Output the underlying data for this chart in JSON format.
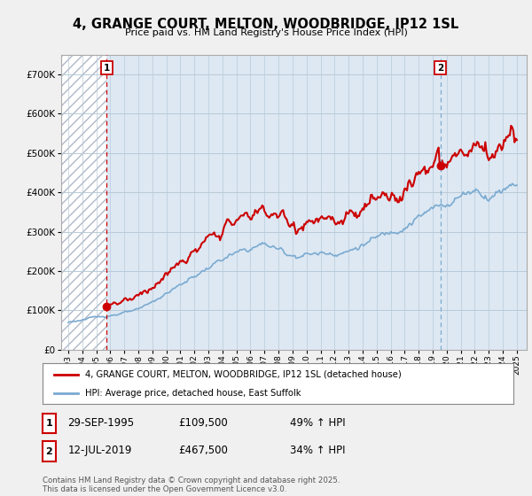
{
  "title": "4, GRANGE COURT, MELTON, WOODBRIDGE, IP12 1SL",
  "subtitle": "Price paid vs. HM Land Registry's House Price Index (HPI)",
  "ytick_values": [
    0,
    100000,
    200000,
    300000,
    400000,
    500000,
    600000,
    700000
  ],
  "ylim": [
    0,
    750000
  ],
  "xlim_start": 1992.5,
  "xlim_end": 2025.7,
  "sale1_year": 1995.75,
  "sale1_price": 109500,
  "sale1_label": "1",
  "sale1_date": "29-SEP-1995",
  "sale1_price_str": "£109,500",
  "sale1_hpi": "49% ↑ HPI",
  "sale2_year": 2019.54,
  "sale2_price": 467500,
  "sale2_label": "2",
  "sale2_date": "12-JUL-2019",
  "sale2_price_str": "£467,500",
  "sale2_hpi": "34% ↑ HPI",
  "legend_line1": "4, GRANGE COURT, MELTON, WOODBRIDGE, IP12 1SL (detached house)",
  "legend_line2": "HPI: Average price, detached house, East Suffolk",
  "footer": "Contains HM Land Registry data © Crown copyright and database right 2025.\nThis data is licensed under the Open Government Licence v3.0.",
  "line_color_red": "#cc0000",
  "line_color_blue": "#7aaad0",
  "bg_color": "#f0f0f0",
  "plot_bg": "#dde8f3",
  "hatch_color": "#b0b8c8",
  "grid_color": "#b8cad8",
  "marker_color_red": "#cc0000",
  "dashed_line_color_red": "#cc0000",
  "dashed_line_color_blue": "#7aaad0"
}
